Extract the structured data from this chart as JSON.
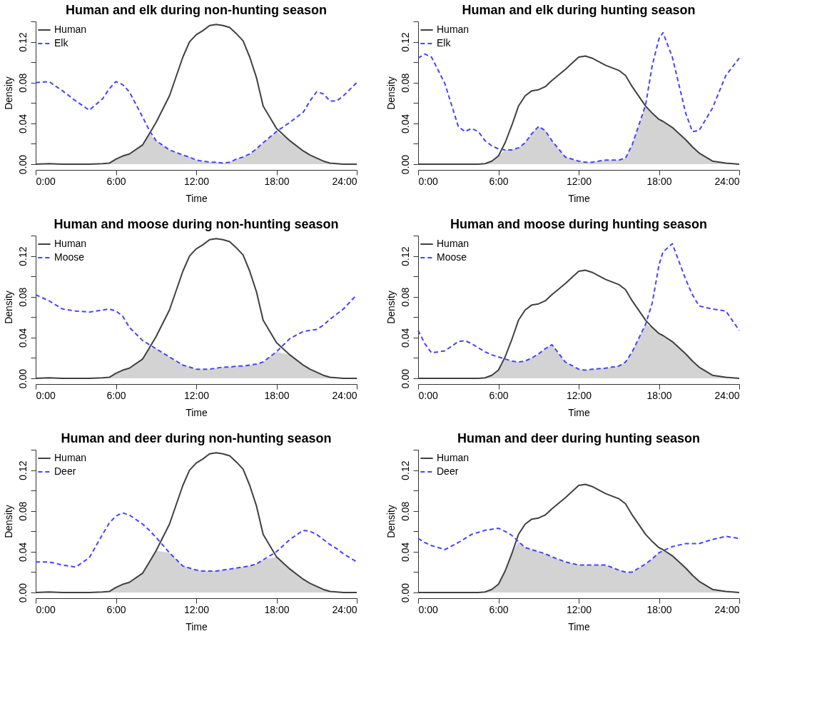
{
  "chart_data": [
    {
      "type": "line",
      "title": "Human and elk during non-hunting season",
      "xlabel": "Time",
      "ylabel": "Density",
      "legend": "top left",
      "grid": false,
      "xlim": [
        0,
        24
      ],
      "xticks": [
        {
          "value": 0,
          "label": "0:00"
        },
        {
          "value": 6,
          "label": "6:00"
        },
        {
          "value": 12,
          "label": "12:00"
        },
        {
          "value": 18,
          "label": "18:00"
        },
        {
          "value": 24,
          "label": "24:00"
        }
      ],
      "ylim": [
        0,
        0.14
      ],
      "yticks": [
        {
          "value": 0,
          "label": "0.00"
        },
        {
          "value": 0.02,
          "label": null
        },
        0.04,
        {
          "value": 0.06,
          "label": null
        },
        0.08,
        {
          "value": 0.1,
          "label": null
        },
        0.12,
        {
          "value": 0.14,
          "label": null
        }
      ],
      "x": [
        0,
        1,
        2,
        3,
        4,
        5,
        5.5,
        6,
        6.5,
        7,
        8,
        8.5,
        9,
        10,
        11,
        11.5,
        12,
        12.5,
        13,
        13.5,
        14,
        14.5,
        15,
        15.5,
        16,
        16.5,
        17,
        18,
        19,
        20,
        20.5,
        21,
        21.5,
        22,
        22.5,
        23,
        24
      ],
      "series": [
        {
          "type": "area",
          "color": "#d3d3d3",
          "values": [
            0,
            0.0005,
            0,
            0,
            0,
            0.0005,
            0.001,
            0.005,
            0.008,
            0.01,
            0.019,
            0.03,
            0.023,
            0.014,
            0.009,
            0.007,
            0.004,
            0.003,
            0.002,
            0.002,
            0.001,
            0.002,
            0.005,
            0.007,
            0.01,
            0.015,
            0.021,
            0.032,
            0.023,
            0.013,
            0.009,
            0.006,
            0.003,
            0.001,
            0.0005,
            0,
            0
          ]
        },
        {
          "name": "Human",
          "color": "#404040",
          "line_style": "solid",
          "values": [
            0,
            0.0005,
            0,
            0,
            0,
            0.0005,
            0.001,
            0.005,
            0.008,
            0.01,
            0.019,
            0.03,
            0.041,
            0.067,
            0.105,
            0.12,
            0.127,
            0.131,
            0.136,
            0.137,
            0.136,
            0.134,
            0.128,
            0.121,
            0.105,
            0.085,
            0.057,
            0.035,
            0.023,
            0.013,
            0.009,
            0.006,
            0.003,
            0.001,
            0.0005,
            0,
            0
          ]
        },
        {
          "name": "Elk",
          "color": "#4444ff",
          "line_style": "dashed",
          "values": [
            0.08,
            0.081,
            0.072,
            0.062,
            0.053,
            0.064,
            0.074,
            0.081,
            0.078,
            0.071,
            0.046,
            0.033,
            0.023,
            0.014,
            0.009,
            0.007,
            0.004,
            0.003,
            0.002,
            0.002,
            0.001,
            0.002,
            0.005,
            0.007,
            0.01,
            0.015,
            0.021,
            0.032,
            0.041,
            0.051,
            0.062,
            0.071,
            0.069,
            0.062,
            0.062,
            0.067,
            0.08
          ]
        }
      ]
    },
    {
      "type": "line",
      "title": "Human and elk during hunting season",
      "xlabel": "Time",
      "ylabel": "Density",
      "legend": "top left",
      "grid": false,
      "xlim": [
        0,
        24
      ],
      "xticks": [
        {
          "value": 0,
          "label": "0:00"
        },
        {
          "value": 6,
          "label": "6:00"
        },
        {
          "value": 12,
          "label": "12:00"
        },
        {
          "value": 18,
          "label": "18:00"
        },
        {
          "value": 24,
          "label": "24:00"
        }
      ],
      "ylim": [
        0,
        0.14
      ],
      "yticks": [
        {
          "value": 0,
          "label": "0.00"
        },
        {
          "value": 0.02,
          "label": null
        },
        0.04,
        {
          "value": 0.06,
          "label": null
        },
        0.08,
        {
          "value": 0.1,
          "label": null
        },
        0.12,
        {
          "value": 0.14,
          "label": null
        }
      ],
      "x": [
        0,
        0.5,
        1,
        2,
        3,
        3.5,
        4,
        4.5,
        5,
        5.5,
        6,
        6.5,
        7,
        7.5,
        8,
        8.5,
        9,
        9.5,
        10,
        11,
        12,
        12.5,
        13,
        14,
        15,
        15.5,
        16,
        17,
        17.5,
        18,
        18.3,
        19,
        20,
        20.5,
        21,
        22,
        23,
        24
      ],
      "series": [
        {
          "type": "area",
          "color": "#d3d3d3",
          "values": [
            0,
            0,
            0,
            0,
            0,
            0,
            0,
            0,
            0.0005,
            0.003,
            0.008,
            0.014,
            0.014,
            0.016,
            0.021,
            0.03,
            0.037,
            0.033,
            0.023,
            0.007,
            0.003,
            0.002,
            0.002,
            0.004,
            0.004,
            0.006,
            0.019,
            0.057,
            0.05,
            0.044,
            0.042,
            0.036,
            0.024,
            0.017,
            0.011,
            0.003,
            0.001,
            0
          ]
        },
        {
          "name": "Human",
          "color": "#404040",
          "line_style": "solid",
          "values": [
            0,
            0,
            0,
            0,
            0,
            0,
            0,
            0,
            0.0005,
            0.003,
            0.008,
            0.021,
            0.038,
            0.057,
            0.067,
            0.072,
            0.073,
            0.076,
            0.082,
            0.093,
            0.105,
            0.106,
            0.104,
            0.097,
            0.092,
            0.087,
            0.076,
            0.057,
            0.05,
            0.044,
            0.042,
            0.036,
            0.024,
            0.017,
            0.011,
            0.003,
            0.001,
            0
          ]
        },
        {
          "name": "Elk",
          "color": "#4444ff",
          "line_style": "dashed",
          "values": [
            0.104,
            0.108,
            0.105,
            0.079,
            0.037,
            0.032,
            0.035,
            0.032,
            0.023,
            0.018,
            0.015,
            0.014,
            0.014,
            0.016,
            0.021,
            0.03,
            0.037,
            0.033,
            0.023,
            0.007,
            0.003,
            0.002,
            0.002,
            0.004,
            0.004,
            0.006,
            0.019,
            0.058,
            0.097,
            0.123,
            0.129,
            0.105,
            0.05,
            0.032,
            0.033,
            0.055,
            0.087,
            0.104
          ]
        }
      ]
    },
    {
      "type": "line",
      "title": "Human and moose during non-hunting season",
      "xlabel": "Time",
      "ylabel": "Density",
      "legend": "top left",
      "grid": false,
      "xlim": [
        0,
        24
      ],
      "xticks": [
        {
          "value": 0,
          "label": "0:00"
        },
        {
          "value": 6,
          "label": "6:00"
        },
        {
          "value": 12,
          "label": "12:00"
        },
        {
          "value": 18,
          "label": "18:00"
        },
        {
          "value": 24,
          "label": "24:00"
        }
      ],
      "ylim": [
        0,
        0.14
      ],
      "yticks": [
        {
          "value": 0,
          "label": "0.00"
        },
        {
          "value": 0.02,
          "label": null
        },
        0.04,
        {
          "value": 0.06,
          "label": null
        },
        0.08,
        {
          "value": 0.1,
          "label": null
        },
        0.12,
        {
          "value": 0.14,
          "label": null
        }
      ],
      "x": [
        0,
        1,
        2,
        3,
        4,
        5,
        5.5,
        6,
        6.5,
        7,
        8,
        8.5,
        9,
        10,
        11,
        11.5,
        12,
        12.5,
        13,
        13.5,
        14,
        14.5,
        15,
        15.5,
        16,
        16.5,
        17,
        18,
        19,
        20,
        20.5,
        21,
        21.5,
        22,
        22.5,
        23,
        24
      ],
      "series": [
        {
          "type": "area",
          "color": "#d3d3d3",
          "values": [
            0,
            0.0005,
            0,
            0,
            0,
            0.0005,
            0.001,
            0.005,
            0.008,
            0.01,
            0.019,
            0.03,
            0.029,
            0.021,
            0.013,
            0.011,
            0.009,
            0.009,
            0.009,
            0.01,
            0.011,
            0.011,
            0.012,
            0.012,
            0.013,
            0.014,
            0.016,
            0.026,
            0.023,
            0.013,
            0.009,
            0.006,
            0.003,
            0.001,
            0.0005,
            0,
            0
          ]
        },
        {
          "name": "Human",
          "color": "#404040",
          "line_style": "solid",
          "values": [
            0,
            0.0005,
            0,
            0,
            0,
            0.0005,
            0.001,
            0.005,
            0.008,
            0.01,
            0.019,
            0.03,
            0.041,
            0.067,
            0.105,
            0.12,
            0.127,
            0.131,
            0.136,
            0.137,
            0.136,
            0.134,
            0.128,
            0.121,
            0.105,
            0.085,
            0.057,
            0.035,
            0.023,
            0.013,
            0.009,
            0.006,
            0.003,
            0.001,
            0.0005,
            0,
            0
          ]
        },
        {
          "name": "Moose",
          "color": "#4444ff",
          "line_style": "dashed",
          "values": [
            0.082,
            0.076,
            0.068,
            0.066,
            0.065,
            0.067,
            0.068,
            0.066,
            0.061,
            0.05,
            0.037,
            0.033,
            0.029,
            0.021,
            0.013,
            0.011,
            0.009,
            0.009,
            0.009,
            0.01,
            0.011,
            0.011,
            0.012,
            0.012,
            0.013,
            0.014,
            0.016,
            0.026,
            0.039,
            0.046,
            0.047,
            0.048,
            0.052,
            0.058,
            0.063,
            0.068,
            0.082
          ]
        }
      ]
    },
    {
      "type": "line",
      "title": "Human and moose during hunting season",
      "xlabel": "Time",
      "ylabel": "Density",
      "legend": "top left",
      "grid": false,
      "xlim": [
        0,
        24
      ],
      "xticks": [
        {
          "value": 0,
          "label": "0:00"
        },
        {
          "value": 6,
          "label": "6:00"
        },
        {
          "value": 12,
          "label": "12:00"
        },
        {
          "value": 18,
          "label": "18:00"
        },
        {
          "value": 24,
          "label": "24:00"
        }
      ],
      "ylim": [
        0,
        0.14
      ],
      "yticks": [
        {
          "value": 0,
          "label": "0.00"
        },
        {
          "value": 0.02,
          "label": null
        },
        0.04,
        {
          "value": 0.06,
          "label": null
        },
        0.08,
        {
          "value": 0.1,
          "label": null
        },
        0.12,
        {
          "value": 0.14,
          "label": null
        }
      ],
      "x": [
        0,
        0.5,
        1,
        2,
        3,
        3.5,
        4,
        4.5,
        5,
        5.5,
        6,
        6.5,
        7,
        7.5,
        8,
        8.5,
        9,
        9.5,
        10,
        11,
        12,
        12.5,
        13,
        14,
        15,
        15.5,
        16,
        17,
        17.5,
        18,
        18.3,
        19,
        20,
        20.5,
        21,
        22,
        23,
        24
      ],
      "series": [
        {
          "type": "area",
          "color": "#d3d3d3",
          "values": [
            0,
            0,
            0,
            0,
            0,
            0,
            0,
            0,
            0.0005,
            0.003,
            0.008,
            0.019,
            0.017,
            0.016,
            0.017,
            0.02,
            0.024,
            0.029,
            0.033,
            0.016,
            0.009,
            0.008,
            0.009,
            0.01,
            0.012,
            0.016,
            0.026,
            0.053,
            0.05,
            0.044,
            0.042,
            0.036,
            0.024,
            0.017,
            0.011,
            0.003,
            0.001,
            0
          ]
        },
        {
          "name": "Human",
          "color": "#404040",
          "line_style": "solid",
          "values": [
            0,
            0,
            0,
            0,
            0,
            0,
            0,
            0,
            0.0005,
            0.003,
            0.008,
            0.021,
            0.038,
            0.057,
            0.067,
            0.072,
            0.073,
            0.076,
            0.082,
            0.093,
            0.105,
            0.106,
            0.104,
            0.097,
            0.092,
            0.087,
            0.076,
            0.057,
            0.05,
            0.044,
            0.042,
            0.036,
            0.024,
            0.017,
            0.011,
            0.003,
            0.001,
            0
          ]
        },
        {
          "name": "Moose",
          "color": "#4444ff",
          "line_style": "dashed",
          "values": [
            0.047,
            0.034,
            0.025,
            0.027,
            0.036,
            0.037,
            0.034,
            0.03,
            0.026,
            0.023,
            0.021,
            0.019,
            0.017,
            0.016,
            0.017,
            0.02,
            0.024,
            0.029,
            0.033,
            0.016,
            0.009,
            0.008,
            0.009,
            0.01,
            0.012,
            0.016,
            0.026,
            0.053,
            0.074,
            0.111,
            0.124,
            0.132,
            0.097,
            0.082,
            0.071,
            0.068,
            0.066,
            0.047
          ]
        }
      ]
    },
    {
      "type": "line",
      "title": "Human and deer during non-hunting season",
      "xlabel": "Time",
      "ylabel": "Density",
      "legend": "top left",
      "grid": false,
      "xlim": [
        0,
        24
      ],
      "xticks": [
        {
          "value": 0,
          "label": "0:00"
        },
        {
          "value": 6,
          "label": "6:00"
        },
        {
          "value": 12,
          "label": "12:00"
        },
        {
          "value": 18,
          "label": "18:00"
        },
        {
          "value": 24,
          "label": "24:00"
        }
      ],
      "ylim": [
        0,
        0.14
      ],
      "yticks": [
        {
          "value": 0,
          "label": "0.00"
        },
        {
          "value": 0.02,
          "label": null
        },
        0.04,
        {
          "value": 0.06,
          "label": null
        },
        0.08,
        {
          "value": 0.1,
          "label": null
        },
        0.12,
        {
          "value": 0.14,
          "label": null
        }
      ],
      "x": [
        0,
        1,
        2,
        3,
        4,
        5,
        5.5,
        6,
        6.5,
        7,
        8,
        8.5,
        9,
        10,
        11,
        11.5,
        12,
        12.5,
        13,
        13.5,
        14,
        14.5,
        15,
        15.5,
        16,
        16.5,
        17,
        18,
        19,
        20,
        20.5,
        21,
        21.5,
        22,
        22.5,
        23,
        24
      ],
      "series": [
        {
          "type": "area",
          "color": "#d3d3d3",
          "values": [
            0,
            0.0005,
            0,
            0,
            0,
            0.0005,
            0.001,
            0.005,
            0.008,
            0.01,
            0.019,
            0.03,
            0.041,
            0.039,
            0.026,
            0.024,
            0.022,
            0.021,
            0.021,
            0.021,
            0.022,
            0.023,
            0.024,
            0.025,
            0.026,
            0.028,
            0.032,
            0.035,
            0.023,
            0.013,
            0.009,
            0.006,
            0.003,
            0.001,
            0.0005,
            0,
            0
          ]
        },
        {
          "name": "Human",
          "color": "#404040",
          "line_style": "solid",
          "values": [
            0,
            0.0005,
            0,
            0,
            0,
            0.0005,
            0.001,
            0.005,
            0.008,
            0.01,
            0.019,
            0.03,
            0.041,
            0.067,
            0.105,
            0.12,
            0.127,
            0.131,
            0.136,
            0.137,
            0.136,
            0.134,
            0.128,
            0.121,
            0.105,
            0.085,
            0.057,
            0.035,
            0.023,
            0.013,
            0.009,
            0.006,
            0.003,
            0.001,
            0.0005,
            0,
            0
          ]
        },
        {
          "name": "Deer",
          "color": "#4444ff",
          "line_style": "dashed",
          "values": [
            0.03,
            0.03,
            0.027,
            0.025,
            0.034,
            0.057,
            0.068,
            0.075,
            0.078,
            0.076,
            0.067,
            0.061,
            0.054,
            0.039,
            0.026,
            0.024,
            0.022,
            0.021,
            0.021,
            0.021,
            0.022,
            0.023,
            0.024,
            0.025,
            0.026,
            0.028,
            0.032,
            0.04,
            0.052,
            0.061,
            0.06,
            0.057,
            0.052,
            0.047,
            0.043,
            0.038,
            0.03
          ]
        }
      ]
    },
    {
      "type": "line",
      "title": "Human and deer during hunting season",
      "xlabel": "Time",
      "ylabel": "Density",
      "legend": "top left",
      "grid": false,
      "xlim": [
        0,
        24
      ],
      "xticks": [
        {
          "value": 0,
          "label": "0:00"
        },
        {
          "value": 6,
          "label": "6:00"
        },
        {
          "value": 12,
          "label": "12:00"
        },
        {
          "value": 18,
          "label": "18:00"
        },
        {
          "value": 24,
          "label": "24:00"
        }
      ],
      "ylim": [
        0,
        0.14
      ],
      "yticks": [
        {
          "value": 0,
          "label": "0.00"
        },
        {
          "value": 0.02,
          "label": null
        },
        0.04,
        {
          "value": 0.06,
          "label": null
        },
        0.08,
        {
          "value": 0.1,
          "label": null
        },
        0.12,
        {
          "value": 0.14,
          "label": null
        }
      ],
      "x": [
        0,
        0.5,
        1,
        2,
        3,
        3.5,
        4,
        4.5,
        5,
        5.5,
        6,
        6.5,
        7,
        7.5,
        8,
        8.5,
        9,
        9.5,
        10,
        11,
        12,
        12.5,
        13,
        14,
        15,
        15.5,
        16,
        17,
        17.5,
        18,
        18.3,
        19,
        20,
        20.5,
        21,
        22,
        23,
        24
      ],
      "series": [
        {
          "type": "area",
          "color": "#d3d3d3",
          "values": [
            0,
            0,
            0,
            0,
            0,
            0,
            0,
            0,
            0.0005,
            0.003,
            0.008,
            0.021,
            0.038,
            0.05,
            0.044,
            0.042,
            0.04,
            0.038,
            0.035,
            0.03,
            0.027,
            0.027,
            0.027,
            0.027,
            0.022,
            0.02,
            0.02,
            0.028,
            0.033,
            0.039,
            0.041,
            0.036,
            0.024,
            0.017,
            0.011,
            0.003,
            0.001,
            0
          ]
        },
        {
          "name": "Human",
          "color": "#404040",
          "line_style": "solid",
          "values": [
            0,
            0,
            0,
            0,
            0,
            0,
            0,
            0,
            0.0005,
            0.003,
            0.008,
            0.021,
            0.038,
            0.057,
            0.067,
            0.072,
            0.073,
            0.076,
            0.082,
            0.093,
            0.105,
            0.106,
            0.104,
            0.097,
            0.092,
            0.087,
            0.076,
            0.057,
            0.05,
            0.044,
            0.042,
            0.036,
            0.024,
            0.017,
            0.011,
            0.003,
            0.001,
            0
          ]
        },
        {
          "name": "Deer",
          "color": "#4444ff",
          "line_style": "dashed",
          "values": [
            0.053,
            0.049,
            0.046,
            0.042,
            0.049,
            0.053,
            0.057,
            0.059,
            0.061,
            0.062,
            0.063,
            0.06,
            0.056,
            0.05,
            0.044,
            0.042,
            0.04,
            0.038,
            0.035,
            0.03,
            0.027,
            0.027,
            0.027,
            0.027,
            0.022,
            0.02,
            0.02,
            0.028,
            0.033,
            0.039,
            0.041,
            0.045,
            0.048,
            0.048,
            0.048,
            0.052,
            0.055,
            0.053
          ]
        }
      ]
    }
  ]
}
